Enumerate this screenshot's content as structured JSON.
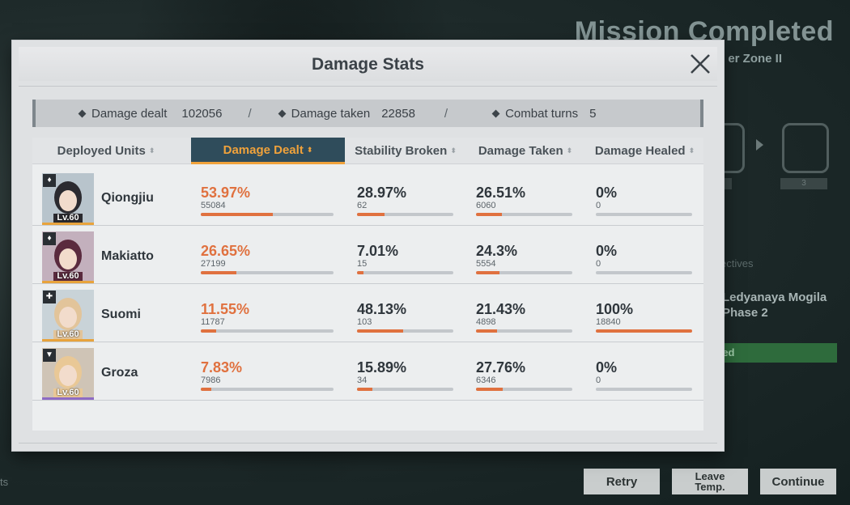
{
  "background": {
    "title": "Mission Completed",
    "subtitle": "er Zone II",
    "badge_right": "3",
    "objectives_label": "ectives",
    "objective_line1": "Ledyanaya Mogila",
    "objective_line2": "Phase 2",
    "objective_status": "ted",
    "left_fragment": "ts",
    "buttons": {
      "retry": "Retry",
      "leave": "Leave Temp.",
      "continue": "Continue"
    }
  },
  "modal": {
    "title": "Damage Stats",
    "summary": {
      "damage_dealt_label": "Damage dealt",
      "damage_dealt_value": "102056",
      "damage_taken_label": "Damage taken",
      "damage_taken_value": "22858",
      "combat_turns_label": "Combat turns",
      "combat_turns_value": "5",
      "separator": "/"
    },
    "tabs": [
      {
        "label": "Deployed Units",
        "active": false
      },
      {
        "label": "Damage Dealt",
        "active": true
      },
      {
        "label": "Stability Broken",
        "active": false
      },
      {
        "label": "Damage Taken",
        "active": false
      },
      {
        "label": "Damage Healed",
        "active": false
      }
    ],
    "sort_glyph": "⬍",
    "units": [
      {
        "name": "Qiongjiu",
        "level": "Lv.60",
        "rarity_color": "#e8a33c",
        "class_icon": "♦",
        "dealt": {
          "pct": "53.97%",
          "raw": "55084",
          "fraction": 0.5397
        },
        "stability": {
          "pct": "28.97%",
          "raw": "62",
          "fraction": 0.2897
        },
        "taken": {
          "pct": "26.51%",
          "raw": "6060",
          "fraction": 0.2651
        },
        "healed": {
          "pct": "0%",
          "raw": "0",
          "fraction": 0
        }
      },
      {
        "name": "Makiatto",
        "level": "Lv.60",
        "rarity_color": "#e8a33c",
        "class_icon": "♦",
        "dealt": {
          "pct": "26.65%",
          "raw": "27199",
          "fraction": 0.2665
        },
        "stability": {
          "pct": "7.01%",
          "raw": "15",
          "fraction": 0.0701
        },
        "taken": {
          "pct": "24.3%",
          "raw": "5554",
          "fraction": 0.243
        },
        "healed": {
          "pct": "0%",
          "raw": "0",
          "fraction": 0
        }
      },
      {
        "name": "Suomi",
        "level": "Lv.60",
        "rarity_color": "#e8a33c",
        "class_icon": "✚",
        "dealt": {
          "pct": "11.55%",
          "raw": "11787",
          "fraction": 0.1155
        },
        "stability": {
          "pct": "48.13%",
          "raw": "103",
          "fraction": 0.4813
        },
        "taken": {
          "pct": "21.43%",
          "raw": "4898",
          "fraction": 0.2143
        },
        "healed": {
          "pct": "100%",
          "raw": "18840",
          "fraction": 1.0
        }
      },
      {
        "name": "Groza",
        "level": "Lv.60",
        "rarity_color": "#8e6bc4",
        "class_icon": "▼",
        "dealt": {
          "pct": "7.83%",
          "raw": "7986",
          "fraction": 0.0783
        },
        "stability": {
          "pct": "15.89%",
          "raw": "34",
          "fraction": 0.1589
        },
        "taken": {
          "pct": "27.76%",
          "raw": "6346",
          "fraction": 0.2776
        },
        "healed": {
          "pct": "0%",
          "raw": "0",
          "fraction": 0
        }
      }
    ]
  },
  "colors": {
    "accent": "#e0713f",
    "active_tab_bg": "#2f4c5b",
    "active_tab_text": "#f0a23b"
  }
}
